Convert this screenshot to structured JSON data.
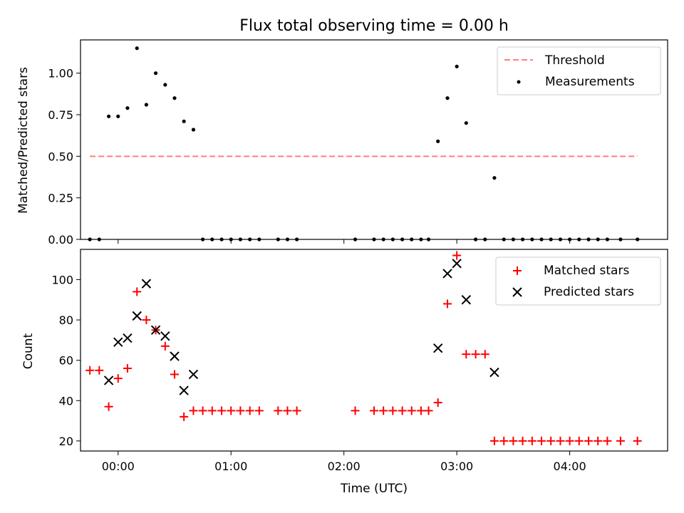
{
  "chart_data": [
    {
      "type": "scatter",
      "title": "Flux total observing time = 0.00 h",
      "xlabel": "",
      "ylabel": "Matched/Predicted stars",
      "xlim": [
        -0.333,
        4.867
      ],
      "ylim": [
        0,
        1.2
      ],
      "x_is_time_hours": true,
      "yticks": [
        0.0,
        0.25,
        0.5,
        0.75,
        1.0
      ],
      "ytick_labels": [
        "0.00",
        "0.25",
        "0.50",
        "0.75",
        "1.00"
      ],
      "legend_position": "upper right",
      "threshold": {
        "name": "Threshold",
        "value": 0.5,
        "x_range": [
          -0.25,
          4.6
        ],
        "color": "#ff7f7f"
      },
      "series": [
        {
          "name": "Measurements",
          "color": "#000000",
          "marker": "dot",
          "x": [
            -0.25,
            -0.167,
            -0.083,
            0.0,
            0.083,
            0.167,
            0.25,
            0.333,
            0.417,
            0.5,
            0.583,
            0.667,
            0.75,
            0.833,
            0.917,
            1.0,
            1.083,
            1.167,
            1.25,
            1.417,
            1.5,
            1.583,
            2.1,
            2.267,
            2.35,
            2.433,
            2.517,
            2.6,
            2.683,
            2.75,
            2.833,
            2.917,
            3.0,
            3.083,
            3.167,
            3.25,
            3.333,
            3.417,
            3.5,
            3.583,
            3.667,
            3.75,
            3.833,
            3.917,
            4.0,
            4.083,
            4.167,
            4.25,
            4.333,
            4.45,
            4.6
          ],
          "y": [
            0,
            0,
            0.74,
            0.74,
            0.79,
            1.15,
            0.81,
            1.0,
            0.93,
            0.85,
            0.71,
            0.66,
            0,
            0,
            0,
            0,
            0,
            0,
            0,
            0,
            0,
            0,
            0,
            0,
            0,
            0,
            0,
            0,
            0,
            0,
            0.59,
            0.85,
            1.04,
            0.7,
            0,
            0,
            0.37,
            0,
            0,
            0,
            0,
            0,
            0,
            0,
            0,
            0,
            0,
            0,
            0,
            0,
            0
          ]
        }
      ]
    },
    {
      "type": "scatter",
      "title": "",
      "xlabel": "Time (UTC)",
      "ylabel": "Count",
      "xlim": [
        -0.333,
        4.867
      ],
      "ylim": [
        15,
        115
      ],
      "x_is_time_hours": true,
      "xticks": [
        0,
        1,
        2,
        3,
        4
      ],
      "xtick_labels": [
        "00:00",
        "01:00",
        "02:00",
        "03:00",
        "04:00"
      ],
      "yticks": [
        20,
        40,
        60,
        80,
        100
      ],
      "ytick_labels": [
        "20",
        "40",
        "60",
        "80",
        "100"
      ],
      "legend_position": "upper right",
      "series": [
        {
          "name": "Matched stars",
          "color": "#ff0000",
          "marker": "plus",
          "x": [
            -0.25,
            -0.167,
            -0.083,
            0.0,
            0.083,
            0.167,
            0.25,
            0.333,
            0.417,
            0.5,
            0.583,
            0.667,
            0.75,
            0.833,
            0.917,
            1.0,
            1.083,
            1.167,
            1.25,
            1.417,
            1.5,
            1.583,
            2.1,
            2.267,
            2.35,
            2.433,
            2.517,
            2.6,
            2.683,
            2.75,
            2.833,
            2.917,
            3.0,
            3.083,
            3.167,
            3.25,
            3.333,
            3.417,
            3.5,
            3.583,
            3.667,
            3.75,
            3.833,
            3.917,
            4.0,
            4.083,
            4.167,
            4.25,
            4.333,
            4.45,
            4.6
          ],
          "y": [
            55,
            55,
            37,
            51,
            56,
            94,
            80,
            75,
            67,
            53,
            32,
            35,
            35,
            35,
            35,
            35,
            35,
            35,
            35,
            35,
            35,
            35,
            35,
            35,
            35,
            35,
            35,
            35,
            35,
            35,
            39,
            88,
            112,
            63,
            63,
            63,
            20,
            20,
            20,
            20,
            20,
            20,
            20,
            20,
            20,
            20,
            20,
            20,
            20,
            20,
            20
          ]
        },
        {
          "name": "Predicted stars",
          "color": "#000000",
          "marker": "x",
          "x": [
            -0.083,
            0.0,
            0.083,
            0.167,
            0.25,
            0.333,
            0.417,
            0.5,
            0.583,
            0.667,
            2.833,
            2.917,
            3.0,
            3.083,
            3.333
          ],
          "y": [
            50,
            69,
            71,
            82,
            98,
            75,
            72,
            62,
            45,
            53,
            66,
            103,
            108,
            90,
            54
          ]
        }
      ]
    }
  ]
}
